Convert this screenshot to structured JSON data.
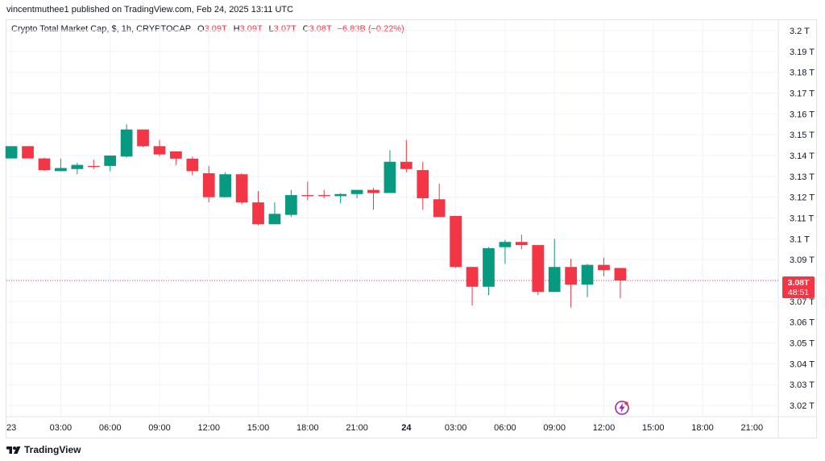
{
  "publisher_line": "vincentmuthee1 published on TradingView.com, Feb 24, 2025 13:11 UTC",
  "legend": {
    "symbol": "Crypto Total Market Cap, $, 1h, CRYPTOCAP",
    "o_label": "O",
    "o_value": "3.09T",
    "h_label": "H",
    "h_value": "3.09T",
    "l_label": "L",
    "l_value": "3.07T",
    "c_label": "C",
    "c_value": "3.08T",
    "change": "−6.83B (−0.22%)"
  },
  "price_label": {
    "price": "3.08T",
    "countdown": "48:51"
  },
  "brand": {
    "name": "TradingView"
  },
  "icons": {
    "logo": "tradingview-logo-icon",
    "bolt": "lightning-icon"
  },
  "colors": {
    "up": "#089981",
    "down": "#f23645",
    "grid": "#f0f3fa",
    "current_line": "#f23645"
  },
  "chart_data": {
    "type": "candlestick",
    "title": "Crypto Total Market Cap, $, 1h, CRYPTOCAP",
    "y_unit": "T (trillion USD)",
    "ylim": [
      3.015,
      3.205
    ],
    "y_ticks": [
      3.2,
      3.19,
      3.18,
      3.17,
      3.16,
      3.15,
      3.14,
      3.13,
      3.12,
      3.11,
      3.1,
      3.09,
      3.08,
      3.07,
      3.06,
      3.05,
      3.04,
      3.03,
      3.02
    ],
    "y_tick_labels": [
      "3.2 T",
      "3.19 T",
      "3.18 T",
      "3.17 T",
      "3.16 T",
      "3.15 T",
      "3.14 T",
      "3.13 T",
      "3.12 T",
      "3.11 T",
      "3.1 T",
      "3.09 T",
      "",
      "3.07 T",
      "3.06 T",
      "3.05 T",
      "3.04 T",
      "3.03 T",
      "3.02 T"
    ],
    "x_ticks": [
      {
        "hour": 0,
        "label": "23",
        "bold": false
      },
      {
        "hour": 3,
        "label": "03:00",
        "bold": false
      },
      {
        "hour": 6,
        "label": "06:00",
        "bold": false
      },
      {
        "hour": 9,
        "label": "09:00",
        "bold": false
      },
      {
        "hour": 12,
        "label": "12:00",
        "bold": false
      },
      {
        "hour": 15,
        "label": "15:00",
        "bold": false
      },
      {
        "hour": 18,
        "label": "18:00",
        "bold": false
      },
      {
        "hour": 21,
        "label": "21:00",
        "bold": false
      },
      {
        "hour": 24,
        "label": "24",
        "bold": true
      },
      {
        "hour": 27,
        "label": "03:00",
        "bold": false
      },
      {
        "hour": 30,
        "label": "06:00",
        "bold": false
      },
      {
        "hour": 33,
        "label": "09:00",
        "bold": false
      },
      {
        "hour": 36,
        "label": "12:00",
        "bold": false
      },
      {
        "hour": 39,
        "label": "15:00",
        "bold": false
      },
      {
        "hour": 42,
        "label": "18:00",
        "bold": false
      },
      {
        "hour": 45,
        "label": "21:00",
        "bold": false
      }
    ],
    "x_range_hours": [
      -0.3,
      46.6
    ],
    "current_price": 3.08,
    "candles": [
      {
        "h": 0,
        "o": 3.1386,
        "hi": 3.1445,
        "lo": 3.1386,
        "c": 3.1445
      },
      {
        "h": 1,
        "o": 3.1445,
        "hi": 3.1445,
        "lo": 3.1386,
        "c": 3.1386
      },
      {
        "h": 2,
        "o": 3.1386,
        "hi": 3.139,
        "lo": 3.1325,
        "c": 3.133
      },
      {
        "h": 3,
        "o": 3.1325,
        "hi": 3.1385,
        "lo": 3.1325,
        "c": 3.134
      },
      {
        "h": 4,
        "o": 3.1335,
        "hi": 3.1365,
        "lo": 3.131,
        "c": 3.1355
      },
      {
        "h": 5,
        "o": 3.135,
        "hi": 3.138,
        "lo": 3.1335,
        "c": 3.1345
      },
      {
        "h": 6,
        "o": 3.135,
        "hi": 3.1395,
        "lo": 3.1325,
        "c": 3.14
      },
      {
        "h": 7,
        "o": 3.1395,
        "hi": 3.155,
        "lo": 3.139,
        "c": 3.1525
      },
      {
        "h": 8,
        "o": 3.1525,
        "hi": 3.1525,
        "lo": 3.144,
        "c": 3.1445
      },
      {
        "h": 9,
        "o": 3.1445,
        "hi": 3.1475,
        "lo": 3.1395,
        "c": 3.1405
      },
      {
        "h": 10,
        "o": 3.142,
        "hi": 3.142,
        "lo": 3.1355,
        "c": 3.1385
      },
      {
        "h": 11,
        "o": 3.1385,
        "hi": 3.1395,
        "lo": 3.1305,
        "c": 3.1325
      },
      {
        "h": 12,
        "o": 3.1315,
        "hi": 3.135,
        "lo": 3.1175,
        "c": 3.12
      },
      {
        "h": 13,
        "o": 3.12,
        "hi": 3.132,
        "lo": 3.12,
        "c": 3.131
      },
      {
        "h": 14,
        "o": 3.131,
        "hi": 3.1315,
        "lo": 3.1165,
        "c": 3.1175
      },
      {
        "h": 15,
        "o": 3.1175,
        "hi": 3.123,
        "lo": 3.1065,
        "c": 3.107
      },
      {
        "h": 16,
        "o": 3.107,
        "hi": 3.1175,
        "lo": 3.107,
        "c": 3.112
      },
      {
        "h": 17,
        "o": 3.1115,
        "hi": 3.1235,
        "lo": 3.1105,
        "c": 3.121
      },
      {
        "h": 18,
        "o": 3.121,
        "hi": 3.1275,
        "lo": 3.1185,
        "c": 3.1205
      },
      {
        "h": 19,
        "o": 3.121,
        "hi": 3.1235,
        "lo": 3.1195,
        "c": 3.1205
      },
      {
        "h": 20,
        "o": 3.1205,
        "hi": 3.122,
        "lo": 3.117,
        "c": 3.1215
      },
      {
        "h": 21,
        "o": 3.1215,
        "hi": 3.1235,
        "lo": 3.1195,
        "c": 3.1235
      },
      {
        "h": 22,
        "o": 3.1235,
        "hi": 3.1245,
        "lo": 3.114,
        "c": 3.122
      },
      {
        "h": 23,
        "o": 3.122,
        "hi": 3.1425,
        "lo": 3.122,
        "c": 3.137
      },
      {
        "h": 24,
        "o": 3.137,
        "hi": 3.1475,
        "lo": 3.132,
        "c": 3.1335
      },
      {
        "h": 25,
        "o": 3.133,
        "hi": 3.137,
        "lo": 3.114,
        "c": 3.1195
      },
      {
        "h": 26,
        "o": 3.119,
        "hi": 3.1265,
        "lo": 3.1105,
        "c": 3.1105
      },
      {
        "h": 27,
        "o": 3.111,
        "hi": 3.111,
        "lo": 3.086,
        "c": 3.0865
      },
      {
        "h": 28,
        "o": 3.0865,
        "hi": 3.0865,
        "lo": 3.068,
        "c": 3.077
      },
      {
        "h": 29,
        "o": 3.077,
        "hi": 3.096,
        "lo": 3.073,
        "c": 3.0955
      },
      {
        "h": 30,
        "o": 3.096,
        "hi": 3.0995,
        "lo": 3.088,
        "c": 3.0985
      },
      {
        "h": 31,
        "o": 3.0985,
        "hi": 3.102,
        "lo": 3.095,
        "c": 3.097
      },
      {
        "h": 32,
        "o": 3.097,
        "hi": 3.097,
        "lo": 3.073,
        "c": 3.0745
      },
      {
        "h": 33,
        "o": 3.0745,
        "hi": 3.1,
        "lo": 3.0745,
        "c": 3.0865
      },
      {
        "h": 34,
        "o": 3.0865,
        "hi": 3.0905,
        "lo": 3.067,
        "c": 3.078
      },
      {
        "h": 35,
        "o": 3.078,
        "hi": 3.088,
        "lo": 3.072,
        "c": 3.0875
      },
      {
        "h": 36,
        "o": 3.0875,
        "hi": 3.091,
        "lo": 3.082,
        "c": 3.085
      },
      {
        "h": 37,
        "o": 3.086,
        "hi": 3.086,
        "lo": 3.0715,
        "c": 3.08
      }
    ]
  }
}
